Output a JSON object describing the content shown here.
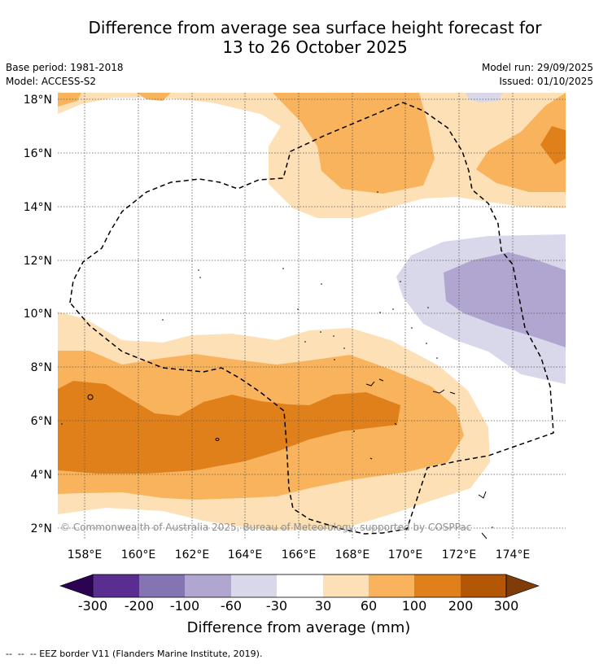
{
  "title": {
    "line1": "Difference from average sea surface height forecast for",
    "line2": "13 to 26 October 2025"
  },
  "meta": {
    "base_period": "Base period: 1981-2018",
    "model": "Model: ACCESS-S2",
    "model_run": "Model run: 29/09/2025",
    "issued": "Issued: 01/10/2025"
  },
  "map": {
    "lat_labels": [
      "18°N",
      "16°N",
      "14°N",
      "12°N",
      "10°N",
      "8°N",
      "6°N",
      "4°N",
      "2°N"
    ],
    "lon_labels": [
      "158°E",
      "160°E",
      "162°E",
      "164°E",
      "166°E",
      "168°E",
      "170°E",
      "172°E",
      "174°E"
    ],
    "lat_range": [
      1.5,
      18.2
    ],
    "lon_range": [
      157.0,
      176.0
    ],
    "copyright": "© Commonwealth of Australia 2025, Bureau of Meteorology, supported by COSPPac"
  },
  "colorbar": {
    "labels": [
      "-300",
      "-200",
      "-100",
      "-60",
      "-30",
      "30",
      "60",
      "100",
      "200",
      "300"
    ],
    "colors": [
      "#5a2d90",
      "#8574b2",
      "#b0a6d0",
      "#d8d8ea",
      "#ffffff",
      "#fde0b6",
      "#f8b35c",
      "#e0801a",
      "#b35706"
    ],
    "under_color": "#2c0352",
    "over_color": "#7f3b08",
    "title": "Difference from average (mm)"
  },
  "footer": "--  --  -- EEZ border V11 (Flanders Marine Institute, 2019)."
}
